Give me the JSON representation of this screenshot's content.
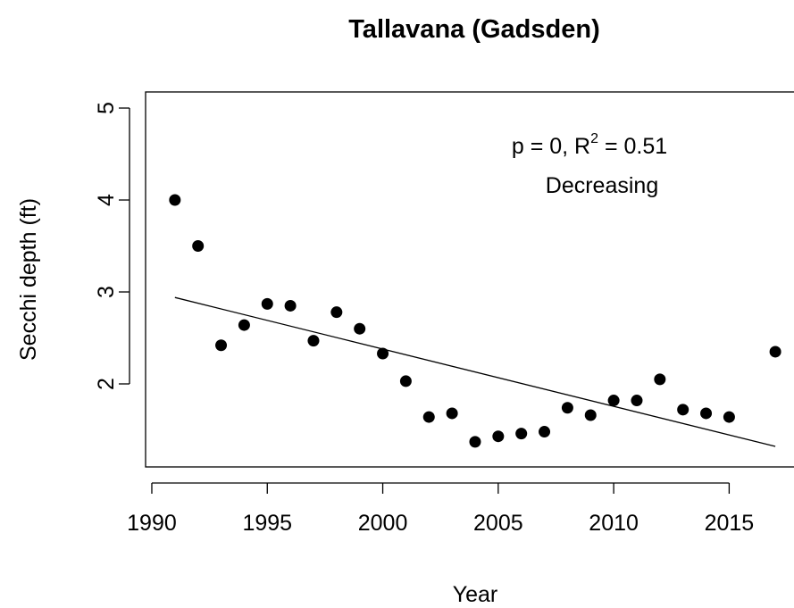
{
  "chart_data": {
    "type": "scatter",
    "title": "Tallavana (Gadsden)",
    "x_label": "Year",
    "y_label": "Secchi depth (ft)",
    "annotation": [
      [
        "p = 0, R",
        "2",
        " = 0.51"
      ],
      "Decreasing"
    ],
    "x": [
      1991,
      1992,
      1993,
      1994,
      1995,
      1996,
      1997,
      1998,
      1999,
      2000,
      2001,
      2002,
      2003,
      2004,
      2005,
      2006,
      2007,
      2008,
      2009,
      2010,
      2011,
      2012,
      2013,
      2014,
      2015,
      2017
    ],
    "values": [
      4.0,
      3.5,
      2.42,
      2.64,
      2.87,
      2.85,
      2.47,
      2.78,
      2.6,
      2.33,
      2.03,
      1.64,
      1.68,
      1.37,
      1.43,
      1.46,
      1.48,
      1.74,
      1.66,
      1.82,
      1.82,
      2.05,
      1.72,
      1.68,
      1.64,
      2.35
    ],
    "color": "#000000",
    "trend": {
      "x": [
        1991,
        2017
      ],
      "values": [
        2.94,
        1.32
      ],
      "color": "#000000"
    },
    "xlim": [
      1989.73,
      2018.04
    ],
    "ylim": [
      1.097,
      5.175
    ],
    "xticks": [
      1990,
      1995,
      2000,
      2005,
      2010,
      2015
    ],
    "yticks": [
      2,
      3,
      4,
      5
    ]
  }
}
